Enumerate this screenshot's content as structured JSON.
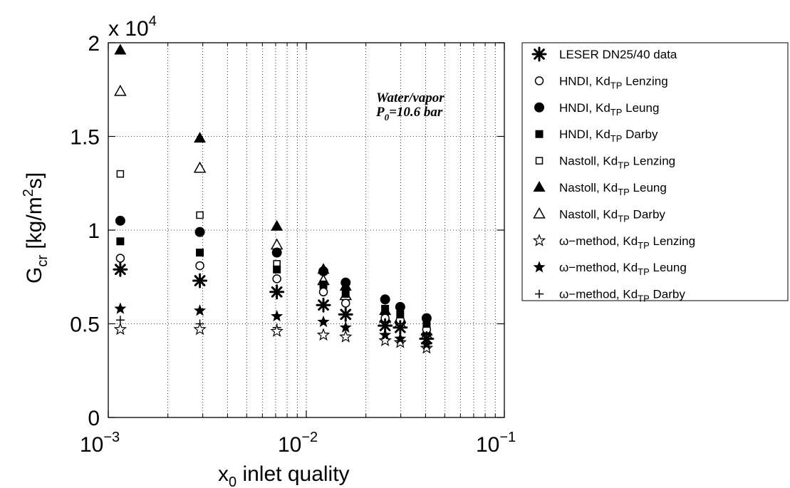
{
  "chart_data": {
    "type": "scatter",
    "xscale": "log",
    "xlim": [
      0.001,
      0.1
    ],
    "ylim": [
      0,
      20000
    ],
    "grid": true,
    "legend_position": "outside-right",
    "xlabel": {
      "main": "x",
      "sub": "0",
      "rest": " inlet quality"
    },
    "ylabel": {
      "main": "G",
      "sub": "cr",
      "rest1": " [kg/m",
      "sup": "2",
      "rest2": "s]"
    },
    "y_multiplier": {
      "prefix": "x 10",
      "exp": "4"
    },
    "x_ticks": [
      {
        "value": 0.001,
        "base": "10",
        "exp": "−3"
      },
      {
        "value": 0.01,
        "base": "10",
        "exp": "−2"
      },
      {
        "value": 0.1,
        "base": "10",
        "exp": "−1"
      }
    ],
    "y_ticks": [
      {
        "value": 0,
        "label": "0"
      },
      {
        "value": 5000,
        "label": "0.5"
      },
      {
        "value": 10000,
        "label": "1"
      },
      {
        "value": 15000,
        "label": "1.5"
      },
      {
        "value": 20000,
        "label": "2"
      }
    ],
    "annotation": {
      "line1": "Water/vapor",
      "line2_main": "P",
      "line2_sub": "0",
      "line2_rest": "=10.6 bar"
    },
    "series": [
      {
        "name": "LESER DN25/40 data",
        "marker": "asterisk",
        "points": [
          [
            0.00115,
            7900
          ],
          [
            0.0029,
            7300
          ],
          [
            0.0071,
            6700
          ],
          [
            0.0122,
            6000
          ],
          [
            0.0158,
            5500
          ],
          [
            0.025,
            4900
          ],
          [
            0.0298,
            4800
          ],
          [
            0.0405,
            4200
          ]
        ]
      },
      {
        "name": "HNDI, Kd_TP Lenzing",
        "marker": "circle-open",
        "points": [
          [
            0.00115,
            8500
          ],
          [
            0.0029,
            8100
          ],
          [
            0.0071,
            7400
          ],
          [
            0.0122,
            6700
          ],
          [
            0.0158,
            6100
          ],
          [
            0.025,
            5300
          ],
          [
            0.0298,
            5200
          ],
          [
            0.0405,
            4700
          ]
        ]
      },
      {
        "name": "HNDI, Kd_TP Leung",
        "marker": "circle-filled",
        "points": [
          [
            0.00115,
            10500
          ],
          [
            0.0029,
            9900
          ],
          [
            0.0071,
            8800
          ],
          [
            0.0122,
            7800
          ],
          [
            0.0158,
            7200
          ],
          [
            0.025,
            6300
          ],
          [
            0.0298,
            5900
          ],
          [
            0.0405,
            5300
          ]
        ]
      },
      {
        "name": "HNDI, Kd_TP Darby",
        "marker": "square-filled",
        "points": [
          [
            0.00115,
            9400
          ],
          [
            0.0029,
            8800
          ],
          [
            0.0071,
            7900
          ],
          [
            0.0122,
            7100
          ],
          [
            0.0158,
            6600
          ],
          [
            0.025,
            5800
          ],
          [
            0.0298,
            5500
          ],
          [
            0.0405,
            5000
          ]
        ]
      },
      {
        "name": "Nastoll, Kd_TP Lenzing",
        "marker": "square-open",
        "points": [
          [
            0.00115,
            13000
          ],
          [
            0.0029,
            10800
          ],
          [
            0.0071,
            8200
          ],
          [
            0.0122,
            6800
          ],
          [
            0.0158,
            6300
          ],
          [
            0.025,
            5400
          ],
          [
            0.0298,
            5100
          ],
          [
            0.0405,
            4600
          ]
        ]
      },
      {
        "name": "Nastoll, Kd_TP Leung",
        "marker": "triangle-filled",
        "points": [
          [
            0.00115,
            19600
          ],
          [
            0.0029,
            14900
          ],
          [
            0.0071,
            10200
          ],
          [
            0.0122,
            7900
          ],
          [
            0.0158,
            7000
          ],
          [
            0.025,
            5700
          ],
          [
            0.0298,
            5300
          ],
          [
            0.0405,
            4600
          ]
        ]
      },
      {
        "name": "Nastoll, Kd_TP Darby",
        "marker": "triangle-open",
        "points": [
          [
            0.00115,
            17400
          ],
          [
            0.0029,
            13300
          ],
          [
            0.0071,
            9200
          ],
          [
            0.0122,
            7300
          ],
          [
            0.0158,
            6500
          ],
          [
            0.025,
            5300
          ],
          [
            0.0298,
            5000
          ],
          [
            0.0405,
            4400
          ]
        ]
      },
      {
        "name": "ω−method, Kd_TP Lenzing",
        "marker": "star-open",
        "points": [
          [
            0.00115,
            4700
          ],
          [
            0.0029,
            4700
          ],
          [
            0.0071,
            4600
          ],
          [
            0.0122,
            4400
          ],
          [
            0.0158,
            4300
          ],
          [
            0.025,
            4100
          ],
          [
            0.0298,
            4000
          ],
          [
            0.0405,
            3700
          ]
        ]
      },
      {
        "name": "ω−method, Kd_TP Leung",
        "marker": "star-filled",
        "points": [
          [
            0.00115,
            5800
          ],
          [
            0.0029,
            5700
          ],
          [
            0.0071,
            5400
          ],
          [
            0.0122,
            5100
          ],
          [
            0.0158,
            4800
          ],
          [
            0.025,
            4400
          ],
          [
            0.0298,
            4200
          ],
          [
            0.0405,
            3900
          ]
        ]
      },
      {
        "name": "ω−method, Kd_TP Darby",
        "marker": "plus",
        "points": [
          [
            0.00115,
            5200
          ],
          [
            0.0029,
            5000
          ],
          [
            0.0071,
            4800
          ],
          [
            0.0122,
            4500
          ],
          [
            0.0158,
            4400
          ],
          [
            0.025,
            4200
          ],
          [
            0.0298,
            4100
          ],
          [
            0.0405,
            3800
          ]
        ]
      }
    ]
  }
}
